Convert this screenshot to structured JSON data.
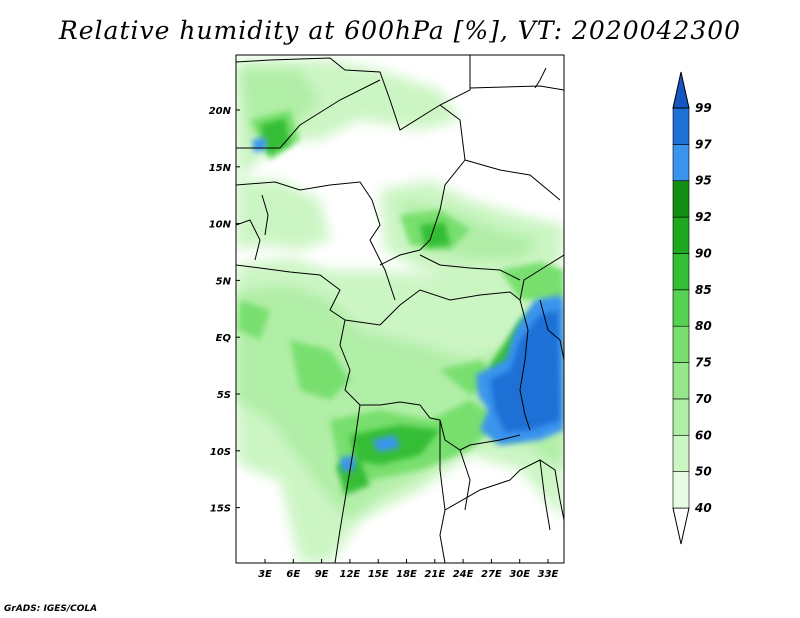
{
  "title": "Relative humidity at 600hPa [%], VT: 2020042300",
  "credit": "GrADS: IGES/COLA",
  "map": {
    "lat_labels": [
      "20N",
      "15N",
      "10N",
      "5N",
      "EQ",
      "5S",
      "10S",
      "15S"
    ],
    "lon_labels": [
      "3E",
      "6E",
      "9E",
      "12E",
      "15E",
      "18E",
      "21E",
      "24E",
      "27E",
      "30E",
      "33E"
    ]
  },
  "colorbar": {
    "levels": [
      "40",
      "50",
      "60",
      "70",
      "75",
      "80",
      "85",
      "90",
      "92",
      "95",
      "97",
      "99"
    ],
    "colors": [
      "#ffffff",
      "#e6fbe3",
      "#ccf5c4",
      "#b1eea7",
      "#96e68b",
      "#78df6e",
      "#55d252",
      "#34be34",
      "#1ea81e",
      "#118e12",
      "#3a94ee",
      "#1e6fd6",
      "#1656c0"
    ]
  }
}
